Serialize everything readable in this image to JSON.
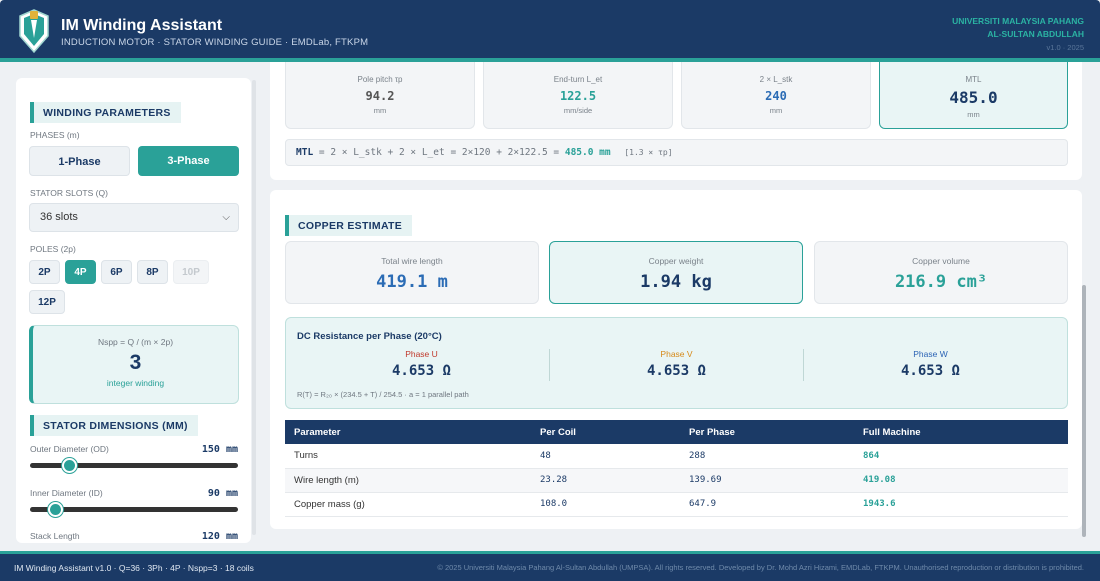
{
  "header": {
    "title": "IM Winding Assistant",
    "subtitle": "INDUCTION MOTOR · STATOR WINDING GUIDE · EMDLab, FTKPM",
    "university_line1": "UNIVERSITI MALAYSIA PAHANG",
    "university_line2": "AL-SULTAN ABDULLAH",
    "version": "v1.0 · 2025"
  },
  "sidebar": {
    "winding_heading": "WINDING PARAMETERS",
    "phases_label": "PHASES (m)",
    "phase_options": [
      "1-Phase",
      "3-Phase"
    ],
    "phase_selected": "3-Phase",
    "slots_label": "STATOR SLOTS (Q)",
    "slots_value": "36 slots",
    "poles_label": "POLES (2p)",
    "poles": [
      "2P",
      "4P",
      "6P",
      "8P",
      "10P",
      "12P"
    ],
    "pole_selected": "4P",
    "pole_disabled": "10P",
    "nspp": {
      "formula": "Nspp = Q / (m × 2p)",
      "value": "3",
      "type": "integer winding"
    },
    "dimensions_heading": "STATOR DIMENSIONS (MM)",
    "sliders": [
      {
        "label": "Outer Diameter (OD)",
        "value": "150 mm",
        "level": 0.19
      },
      {
        "label": "Inner Diameter (ID)",
        "value": "90 mm",
        "level": 0.12
      },
      {
        "label": "Stack Length",
        "value": "120 mm"
      }
    ]
  },
  "mtl": {
    "metrics": [
      {
        "label": "Pole pitch τp",
        "value": "94.2",
        "unit": "mm"
      },
      {
        "label": "End-turn L_et",
        "value": "122.5",
        "unit": "mm/side"
      },
      {
        "label": "2 × L_stk",
        "value": "240",
        "unit": "mm"
      },
      {
        "label": "MTL",
        "value": "485.0",
        "unit": "mm"
      }
    ],
    "formula_prefix": "MTL",
    "formula_body": " = 2 × L_stk + 2 × L_et = 2×120 + 2×122.5 = ",
    "formula_result": "485.0 mm",
    "formula_note": "[1.3 × τp]"
  },
  "copper": {
    "heading": "COPPER ESTIMATE",
    "metrics": [
      {
        "label": "Total wire length",
        "value": "419.1 m"
      },
      {
        "label": "Copper weight",
        "value": "1.94 kg"
      },
      {
        "label": "Copper volume",
        "value": "216.9 cm³"
      }
    ],
    "dc": {
      "title": "DC Resistance per Phase (20°C)",
      "phases": [
        {
          "label": "Phase U",
          "value": "4.653 Ω",
          "color": "#c0392b"
        },
        {
          "label": "Phase V",
          "value": "4.653 Ω",
          "color": "#d68a1a"
        },
        {
          "label": "Phase W",
          "value": "4.653 Ω",
          "color": "#2b63b5"
        }
      ],
      "note": "R(T) = R₂₀ × (234.5 + T) / 254.5 · a = 1 parallel path"
    },
    "table": {
      "headers": [
        "Parameter",
        "Per Coil",
        "Per Phase",
        "Full Machine"
      ],
      "rows": [
        [
          "Turns",
          "48",
          "288",
          "864"
        ],
        [
          "Wire length (m)",
          "23.28",
          "139.69",
          "419.08"
        ],
        [
          "Copper mass (g)",
          "108.0",
          "647.9",
          "1943.6"
        ]
      ]
    }
  },
  "footer": {
    "left": "IM Winding Assistant v1.0 · Q=36 · 3Ph · 4P · Nspp=3 · 18 coils",
    "right": "© 2025 Universiti Malaysia Pahang Al-Sultan Abdullah (UMPSA). All rights reserved. Developed by Dr. Mohd Azri Hizami, EMDLab, FTKPM. Unauthorised reproduction or distribution is prohibited."
  },
  "colors": {
    "navy": "#1b3a66",
    "teal": "#2aa198",
    "copper_value": "#2b6cb5"
  }
}
